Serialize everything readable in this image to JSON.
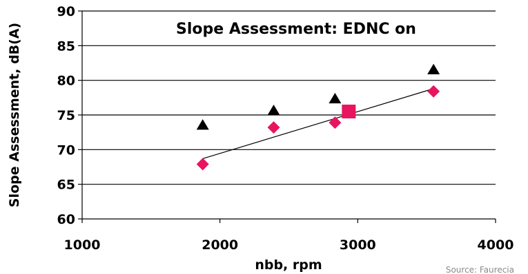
{
  "chart_data": {
    "type": "scatter",
    "title": "Slope Assessment: EDNC on",
    "xlabel": "nbb, rpm",
    "ylabel": "Slope Assessment, dB(A)",
    "xlim": [
      1000,
      4000
    ],
    "ylim": [
      60,
      90
    ],
    "x_ticks": [
      "1000",
      "2000",
      "3000",
      "4000"
    ],
    "y_ticks": [
      "60",
      "65",
      "70",
      "75",
      "80",
      "85",
      "90"
    ],
    "grid": "horizontal",
    "series": [
      {
        "marker": "triangle",
        "color": "#000000",
        "points": [
          {
            "x": 1875,
            "y": 73.5
          },
          {
            "x": 2390,
            "y": 75.6
          },
          {
            "x": 2835,
            "y": 77.3
          },
          {
            "x": 3550,
            "y": 81.5
          }
        ]
      },
      {
        "marker": "diamond",
        "color": "#e8145f",
        "points": [
          {
            "x": 1875,
            "y": 67.9
          },
          {
            "x": 2390,
            "y": 73.2
          },
          {
            "x": 2835,
            "y": 73.9
          },
          {
            "x": 3550,
            "y": 78.4
          }
        ]
      },
      {
        "marker": "square",
        "color": "#e8145f",
        "points": [
          {
            "x": 2935,
            "y": 75.5
          }
        ]
      }
    ],
    "trendline": {
      "color": "#000000",
      "points": [
        {
          "x": 1875,
          "y": 68.7
        },
        {
          "x": 3550,
          "y": 78.8
        }
      ]
    },
    "source": "Source: Faurecia"
  }
}
